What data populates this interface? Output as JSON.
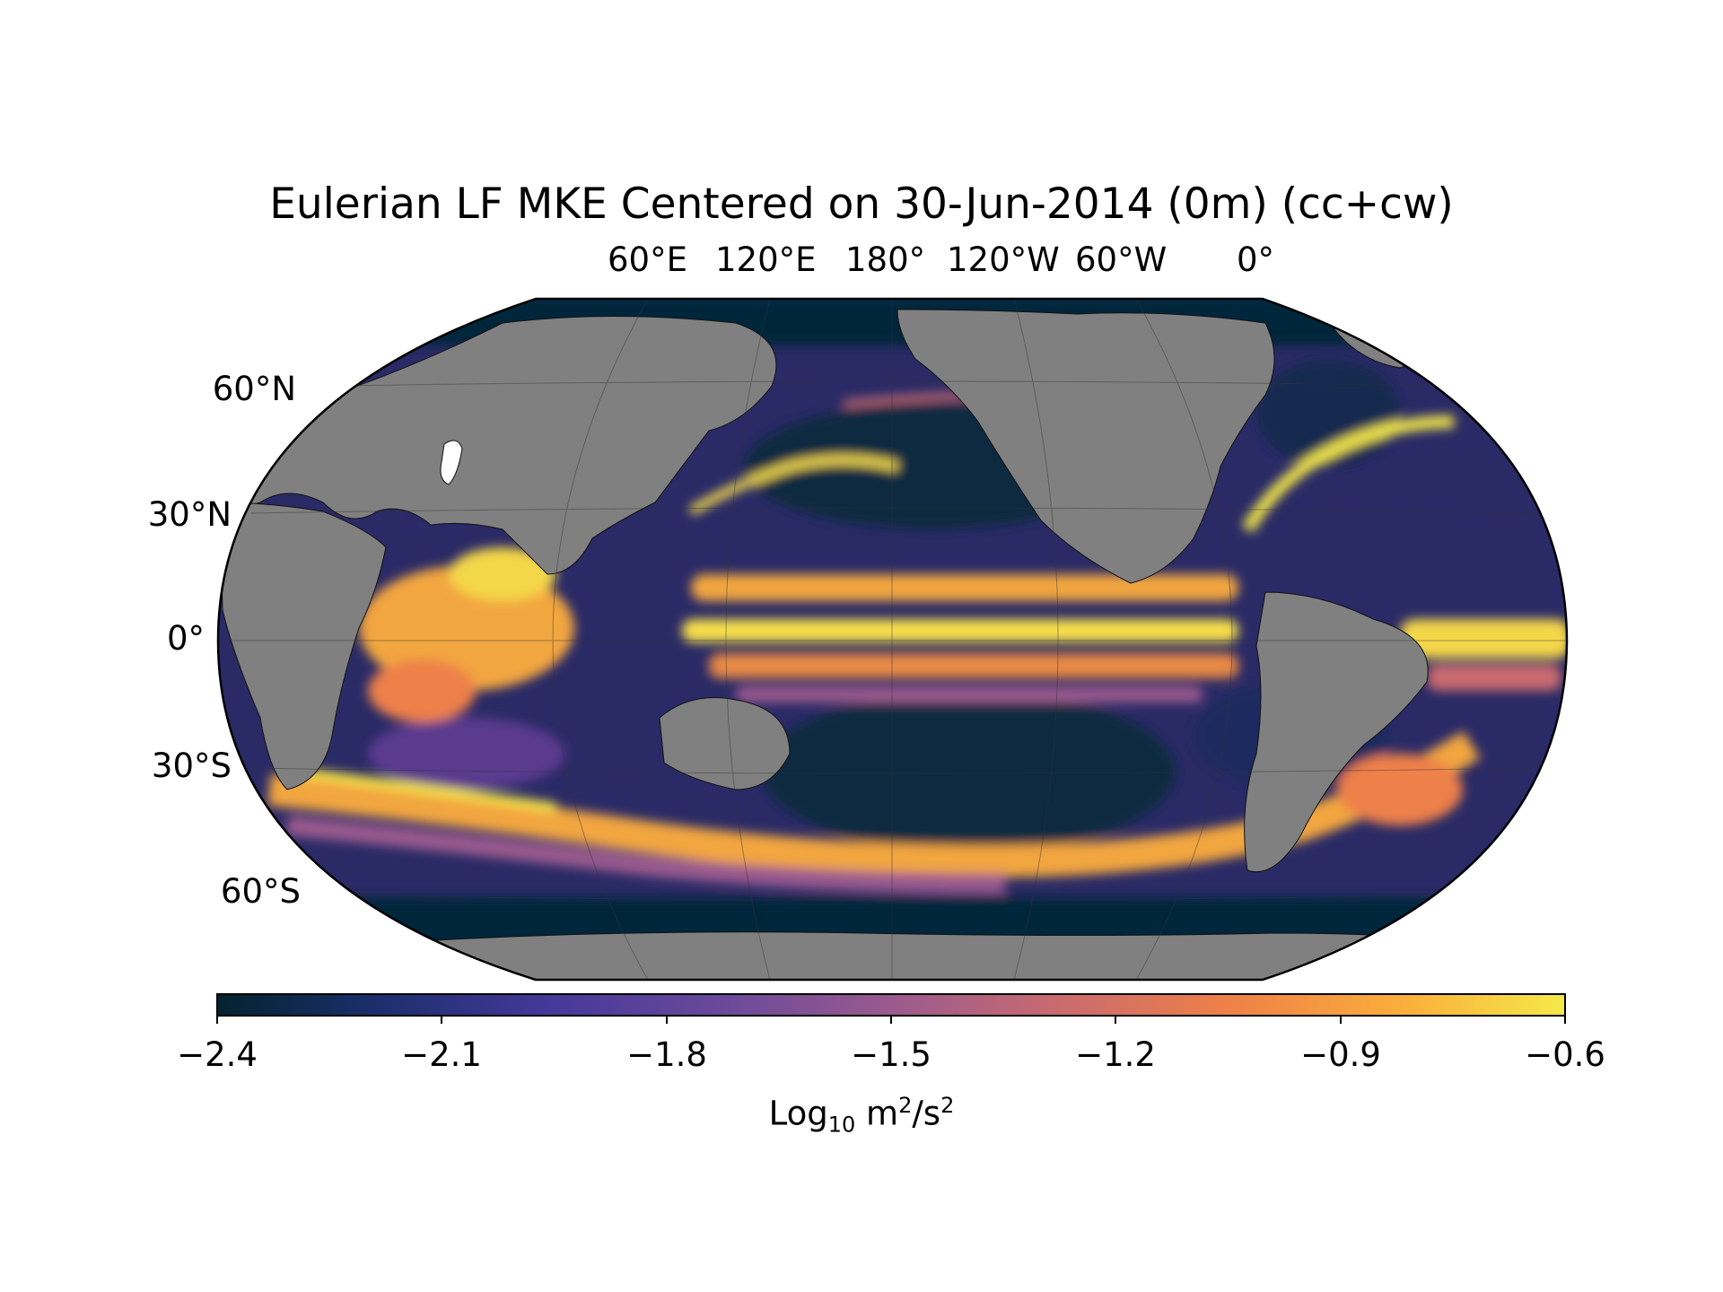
{
  "title": "Eulerian LF MKE Centered on 30-Jun-2014 (0m) (cc+cw)",
  "map": {
    "projection": "robinson",
    "land_color": "#808080",
    "ocean_colormap": "thermal",
    "longitude_labels": [
      "60°E",
      "120°E",
      "180°",
      "120°W",
      "60°W",
      "0°"
    ],
    "latitude_labels": [
      "60°N",
      "30°N",
      "0°",
      "30°S",
      "60°S"
    ],
    "gridlines": true
  },
  "colorbar": {
    "ticks": [
      "−2.4",
      "−2.1",
      "−1.8",
      "−1.5",
      "−1.2",
      "−0.9",
      "−0.6"
    ],
    "label_main": "Log",
    "label_sub": "10",
    "label_unit_a": " m",
    "label_sup_a": "2",
    "label_unit_b": "/s",
    "label_sup_b": "2",
    "range": [
      -2.4,
      -0.6
    ],
    "colors": [
      "#04232e",
      "#1c2f6e",
      "#46399a",
      "#6c4a9a",
      "#9a5a8e",
      "#c86a70",
      "#ee8048",
      "#fbae3c",
      "#f4e94a"
    ]
  }
}
